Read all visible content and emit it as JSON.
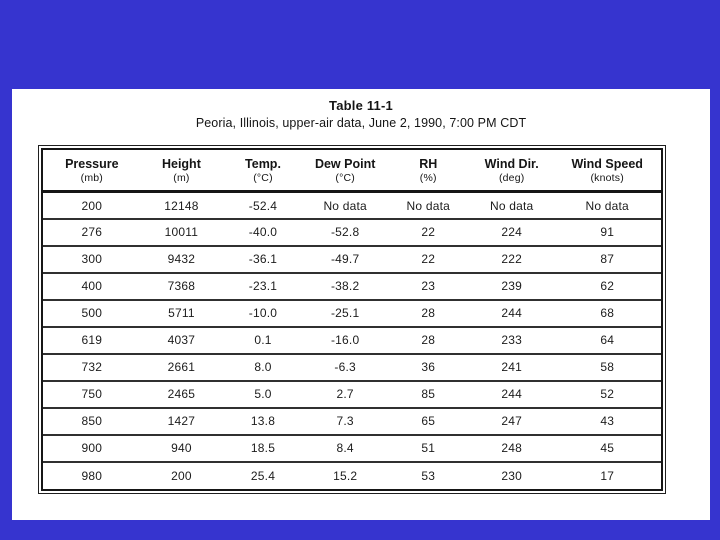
{
  "slide": {
    "background_color": "#3634cf",
    "page_color": "#ffffff"
  },
  "table": {
    "title": "Table 11-1",
    "subtitle": "Peoria, Illinois, upper-air data, June 2, 1990, 7:00 PM CDT",
    "columns": [
      {
        "label": "Pressure",
        "unit": "(mb)"
      },
      {
        "label": "Height",
        "unit": "(m)"
      },
      {
        "label": "Temp.",
        "unit": "(°C)"
      },
      {
        "label": "Dew Point",
        "unit": "(°C)"
      },
      {
        "label": "RH",
        "unit": "(%)"
      },
      {
        "label": "Wind Dir.",
        "unit": "(deg)"
      },
      {
        "label": "Wind Speed",
        "unit": "(knots)"
      }
    ],
    "rows": [
      [
        "200",
        "12148",
        "-52.4",
        "No data",
        "No data",
        "No data",
        "No data"
      ],
      [
        "276",
        "10011",
        "-40.0",
        "-52.8",
        "22",
        "224",
        "91"
      ],
      [
        "300",
        "9432",
        "-36.1",
        "-49.7",
        "22",
        "222",
        "87"
      ],
      [
        "400",
        "7368",
        "-23.1",
        "-38.2",
        "23",
        "239",
        "62"
      ],
      [
        "500",
        "5711",
        "-10.0",
        "-25.1",
        "28",
        "244",
        "68"
      ],
      [
        "619",
        "4037",
        "0.1",
        "-16.0",
        "28",
        "233",
        "64"
      ],
      [
        "732",
        "2661",
        "8.0",
        "-6.3",
        "36",
        "241",
        "58"
      ],
      [
        "750",
        "2465",
        "5.0",
        "2.7",
        "85",
        "244",
        "52"
      ],
      [
        "850",
        "1427",
        "13.8",
        "7.3",
        "65",
        "247",
        "43"
      ],
      [
        "900",
        "940",
        "18.5",
        "8.4",
        "51",
        "248",
        "45"
      ],
      [
        "980",
        "200",
        "25.4",
        "15.2",
        "53",
        "230",
        "17"
      ]
    ]
  },
  "chart_data": {
    "type": "table",
    "title": "Table 11-1",
    "subtitle": "Peoria, Illinois, upper-air data, June 2, 1990, 7:00 PM CDT",
    "columns": [
      "Pressure (mb)",
      "Height (m)",
      "Temp. (°C)",
      "Dew Point (°C)",
      "RH (%)",
      "Wind Dir. (deg)",
      "Wind Speed (knots)"
    ],
    "rows": [
      [
        "200",
        "12148",
        "-52.4",
        "No data",
        "No data",
        "No data",
        "No data"
      ],
      [
        "276",
        "10011",
        "-40.0",
        "-52.8",
        "22",
        "224",
        "91"
      ],
      [
        "300",
        "9432",
        "-36.1",
        "-49.7",
        "22",
        "222",
        "87"
      ],
      [
        "400",
        "7368",
        "-23.1",
        "-38.2",
        "23",
        "239",
        "62"
      ],
      [
        "500",
        "5711",
        "-10.0",
        "-25.1",
        "28",
        "244",
        "68"
      ],
      [
        "619",
        "4037",
        "0.1",
        "-16.0",
        "28",
        "233",
        "64"
      ],
      [
        "732",
        "2661",
        "8.0",
        "-6.3",
        "36",
        "241",
        "58"
      ],
      [
        "750",
        "2465",
        "5.0",
        "2.7",
        "85",
        "244",
        "52"
      ],
      [
        "850",
        "1427",
        "13.8",
        "7.3",
        "65",
        "247",
        "43"
      ],
      [
        "900",
        "940",
        "18.5",
        "8.4",
        "51",
        "248",
        "45"
      ],
      [
        "980",
        "200",
        "25.4",
        "15.2",
        "53",
        "230",
        "17"
      ]
    ]
  }
}
